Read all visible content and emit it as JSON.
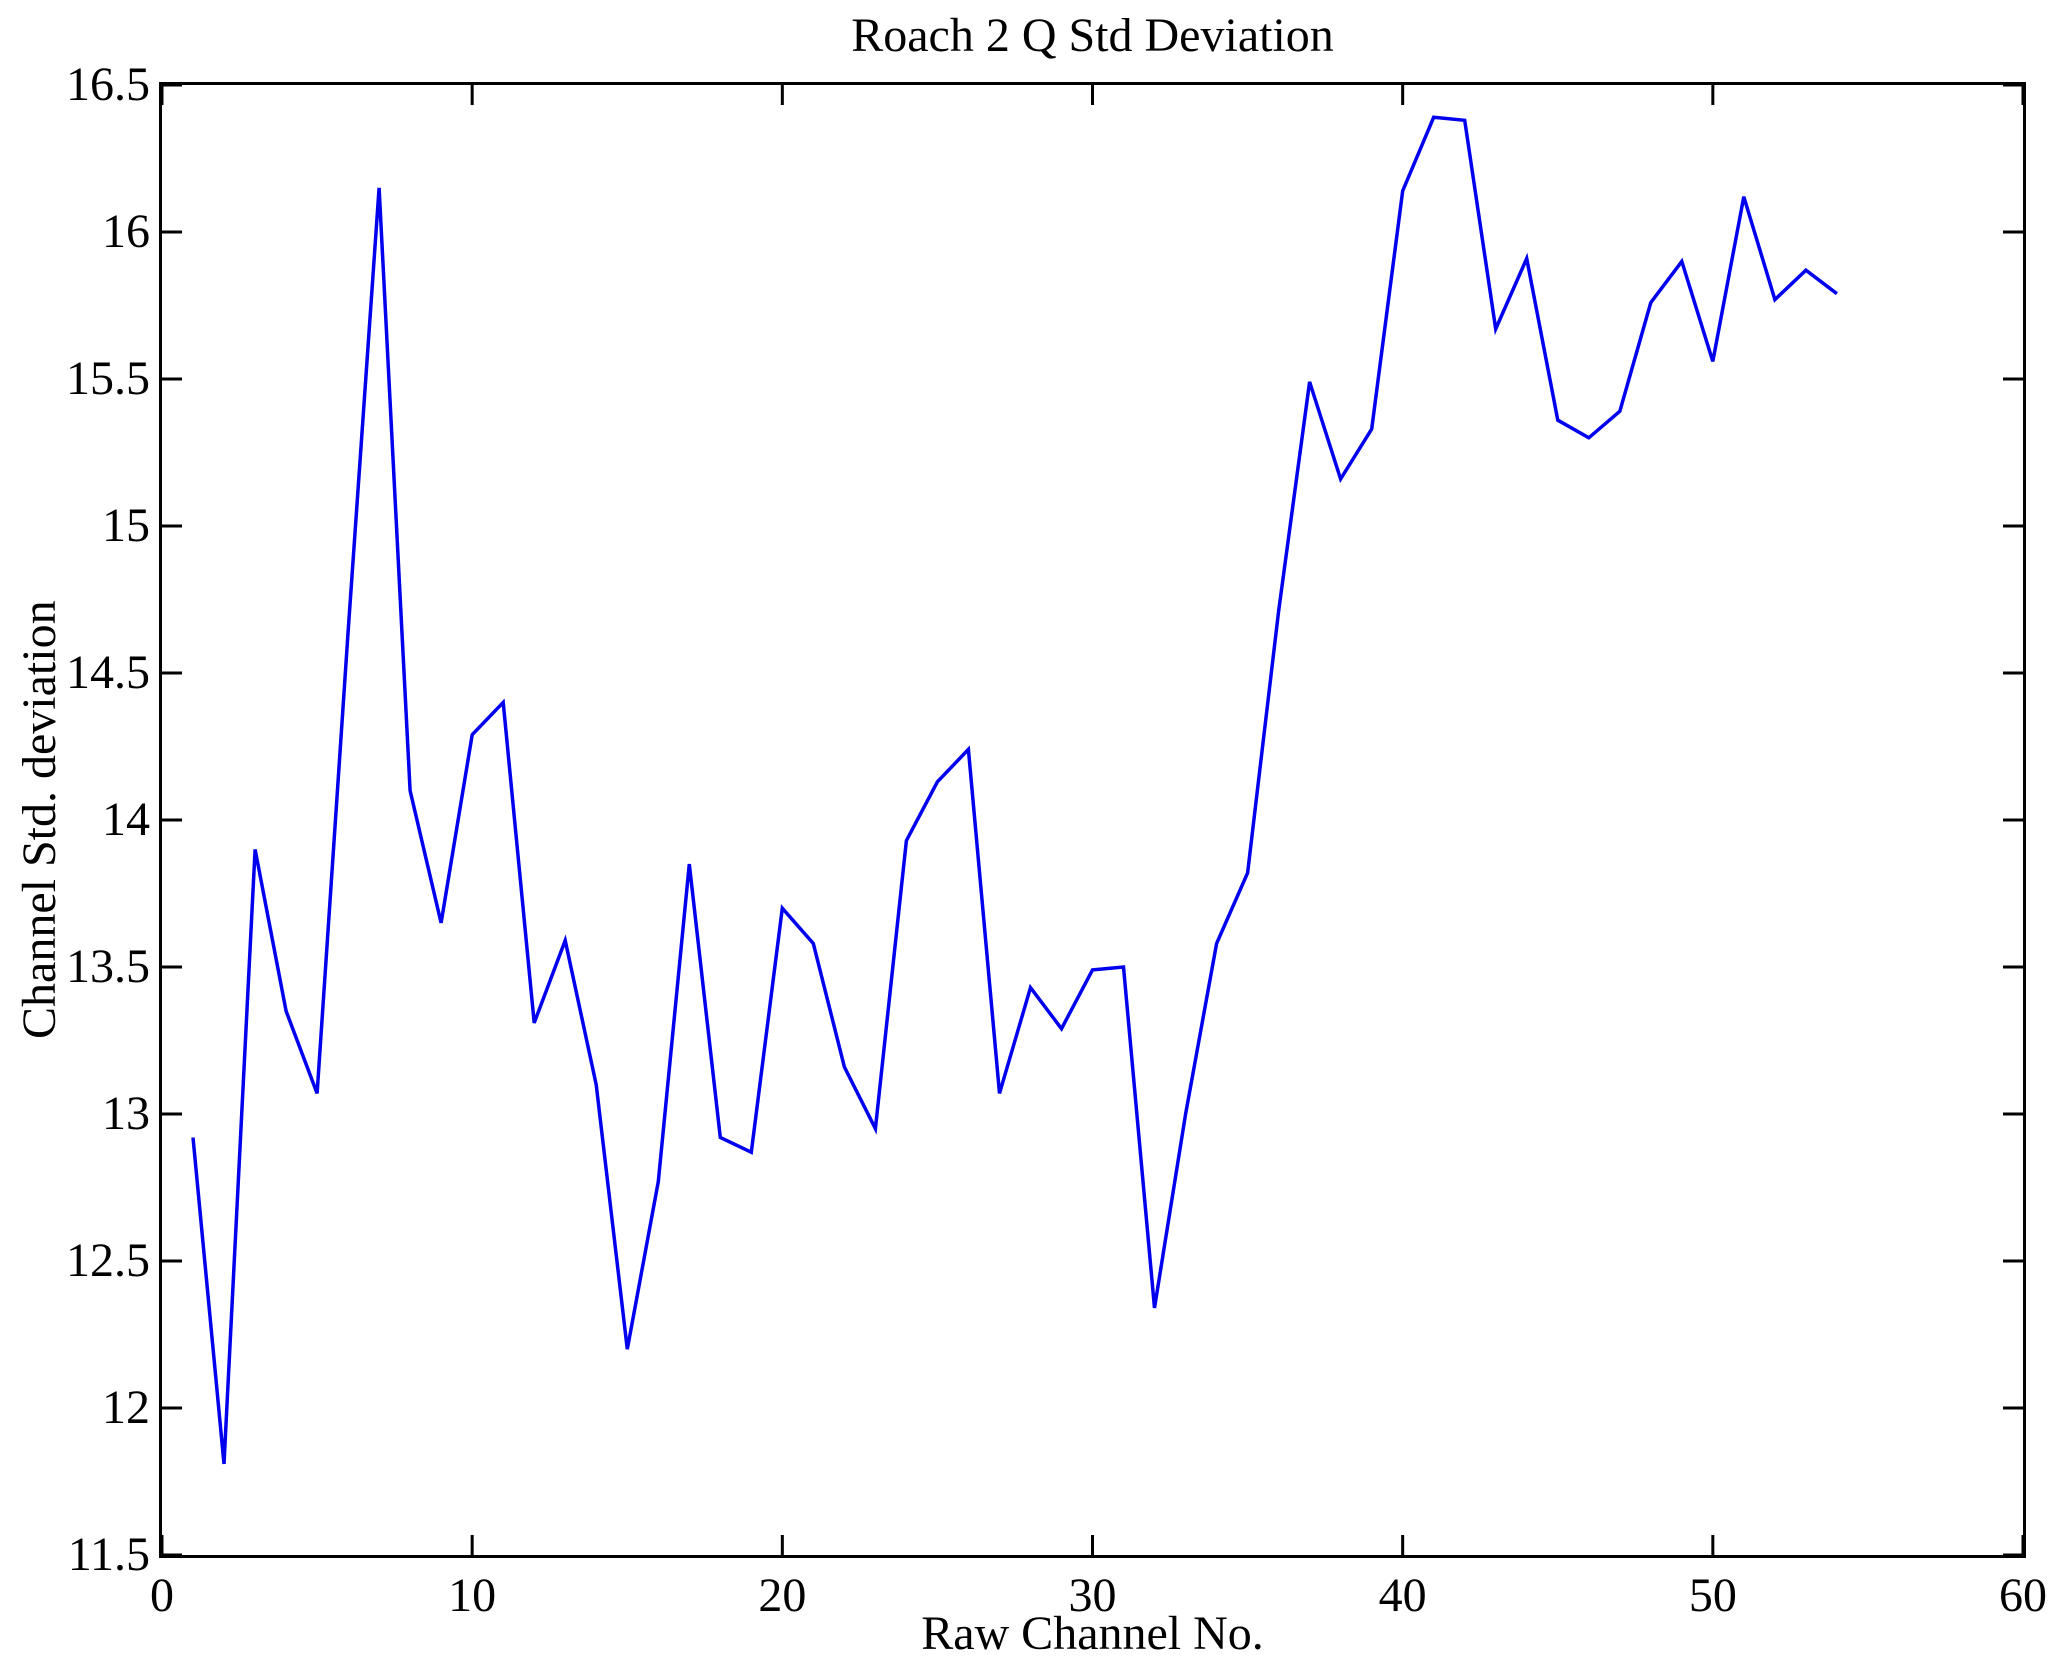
{
  "title": "Roach 2 Q Std Deviation",
  "xlabel": "Raw Channel No.",
  "ylabel": "Channel Std. deviation",
  "chart_data": {
    "type": "line",
    "title": "Roach 2 Q Std Deviation",
    "xlabel": "Raw Channel No.",
    "ylabel": "Channel Std. deviation",
    "xlim": [
      0,
      60
    ],
    "ylim": [
      11.5,
      16.5
    ],
    "grid": false,
    "legend": "none",
    "line_color": "#0000EE",
    "axis_color": "#000000",
    "background_color": "#FFFFFF",
    "x_tick_labels": [
      "0",
      "10",
      "20",
      "30",
      "40",
      "50",
      "60"
    ],
    "x_tick_values": [
      0,
      10,
      20,
      30,
      40,
      50,
      60
    ],
    "y_tick_labels": [
      "11.5",
      "12",
      "12.5",
      "13",
      "13.5",
      "14",
      "14.5",
      "15",
      "15.5",
      "16",
      "16.5"
    ],
    "y_tick_values": [
      11.5,
      12,
      12.5,
      13,
      13.5,
      14,
      14.5,
      15,
      15.5,
      16,
      16.5
    ],
    "x": [
      1,
      2,
      3,
      4,
      5,
      6,
      7,
      8,
      9,
      10,
      11,
      12,
      13,
      14,
      15,
      16,
      17,
      18,
      19,
      20,
      21,
      22,
      23,
      24,
      25,
      26,
      27,
      28,
      29,
      30,
      31,
      32,
      33,
      34,
      35,
      36,
      37,
      38,
      39,
      40,
      41,
      42,
      43,
      44,
      45,
      46,
      47,
      48,
      49,
      50,
      51,
      52,
      53,
      54
    ],
    "y": [
      12.92,
      11.81,
      13.9,
      13.35,
      13.07,
      14.64,
      16.15,
      14.1,
      13.65,
      14.29,
      14.4,
      13.31,
      13.59,
      13.1,
      12.2,
      12.77,
      13.85,
      12.92,
      12.87,
      13.7,
      13.58,
      13.16,
      12.95,
      13.93,
      14.13,
      14.24,
      13.07,
      13.43,
      13.29,
      13.49,
      13.5,
      12.34,
      13.0,
      13.58,
      13.82,
      14.71,
      15.49,
      15.16,
      15.33,
      16.14,
      16.39,
      16.38,
      15.67,
      15.91,
      15.36,
      15.3,
      15.39,
      15.76,
      15.9,
      15.56,
      16.12,
      15.77,
      15.87,
      15.79
    ]
  }
}
